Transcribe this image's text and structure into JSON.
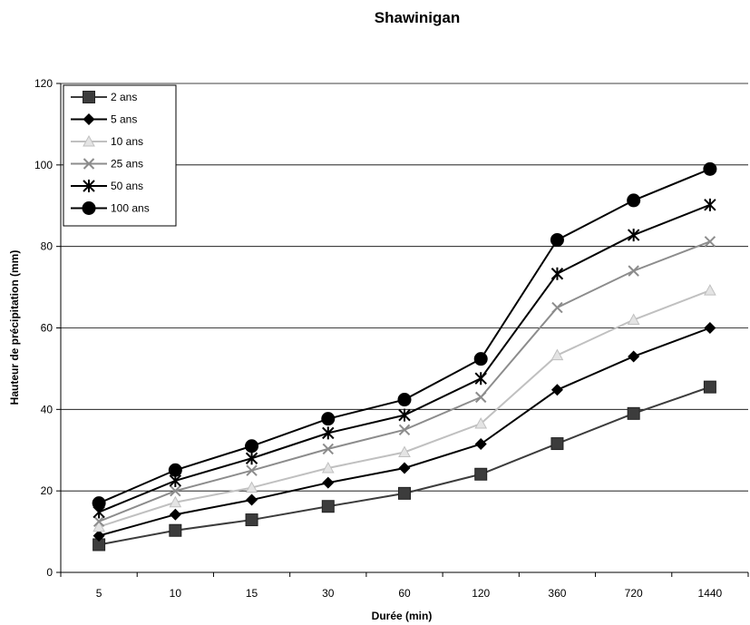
{
  "chart_data": {
    "type": "line",
    "title": "Shawinigan",
    "xlabel": "Durée (min)",
    "ylabel": "Hauteur de précipitation (mm)",
    "categories": [
      "5",
      "10",
      "15",
      "30",
      "60",
      "120",
      "360",
      "720",
      "1440"
    ],
    "ylim": [
      0,
      120
    ],
    "yticks": [
      0,
      20,
      40,
      60,
      80,
      100,
      120
    ],
    "grid": true,
    "legend_position": "top-left",
    "series": [
      {
        "name": "2 ans",
        "values": [
          6.8,
          10.3,
          12.9,
          16.2,
          19.4,
          24.1,
          31.6,
          39.0,
          45.5
        ],
        "color": "#3c3c3c",
        "marker": "square"
      },
      {
        "name": "5 ans",
        "values": [
          9.0,
          14.2,
          17.8,
          22.0,
          25.6,
          31.5,
          44.8,
          53.0,
          60.0
        ],
        "color": "#000000",
        "marker": "diamond"
      },
      {
        "name": "10 ans",
        "values": [
          11.2,
          17.2,
          20.8,
          25.6,
          29.5,
          36.5,
          53.3,
          62.0,
          69.2
        ],
        "color": "#c0c0c0",
        "marker": "triangle"
      },
      {
        "name": "25 ans",
        "values": [
          12.5,
          20.0,
          25.0,
          30.3,
          35.0,
          43.0,
          65.0,
          74.0,
          81.2
        ],
        "color": "#8c8c8c",
        "marker": "x"
      },
      {
        "name": "50 ans",
        "values": [
          14.8,
          22.5,
          28.0,
          34.2,
          38.6,
          47.6,
          73.3,
          82.8,
          90.2
        ],
        "color": "#000000",
        "marker": "star"
      },
      {
        "name": "100 ans",
        "values": [
          17.0,
          25.1,
          31.0,
          37.7,
          42.4,
          52.4,
          81.6,
          91.3,
          99.0
        ],
        "color": "#000000",
        "marker": "circle"
      }
    ]
  }
}
